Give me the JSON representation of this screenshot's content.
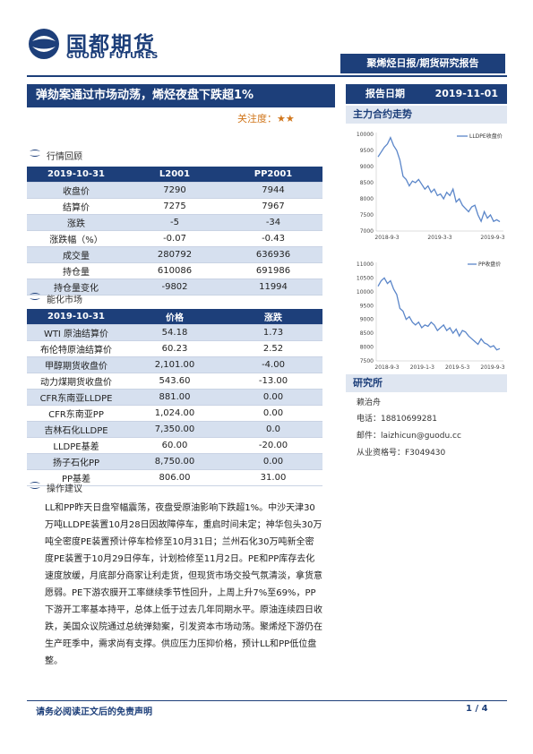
{
  "brand": {
    "name_cn": "国都期货",
    "name_en": "GUODU FUTURES",
    "colors": {
      "primary": "#1d3f7a",
      "row_shade": "#d6e0ef",
      "accent": "#d0751a",
      "line": "#5b86c9"
    }
  },
  "banner": "聚烯烃日报/期货研究报告",
  "title": "弹劾案通过市场动荡，烯烃夜盘下跌超1%",
  "report_date": {
    "label": "报告日期",
    "value": "2019-11-01"
  },
  "attention": "关注度：★★",
  "section_quotes": "行情回顾",
  "quote_table": {
    "headers": [
      "2019-10-31",
      "L2001",
      "PP2001"
    ],
    "rows": [
      [
        "收盘价",
        "7290",
        "7944"
      ],
      [
        "结算价",
        "7275",
        "7967"
      ],
      [
        "涨跌",
        "-5",
        "-34"
      ],
      [
        "涨跌幅（%）",
        "-0.07",
        "-0.43"
      ],
      [
        "成交量",
        "280792",
        "636936"
      ],
      [
        "持仓量",
        "610086",
        "691986"
      ],
      [
        "持仓量变化",
        "-9802",
        "11994"
      ]
    ]
  },
  "section_chem": "能化市场",
  "chem_table": {
    "headers": [
      "2019-10-31",
      "价格",
      "涨跌"
    ],
    "rows": [
      [
        "WTI 原油结算价",
        "54.18",
        "1.73"
      ],
      [
        "布伦特原油结算价",
        "60.23",
        "2.52"
      ],
      [
        "甲醇期货收盘价",
        "2,101.00",
        "-4.00"
      ],
      [
        "动力煤期货收盘价",
        "543.60",
        "-13.00"
      ],
      [
        "CFR东南亚LLDPE",
        "881.00",
        "0.00"
      ],
      [
        "CFR东南亚PP",
        "1,024.00",
        "0.00"
      ],
      [
        "吉林石化LLDPE",
        "7,350.00",
        "0.0"
      ],
      [
        "LLDPE基差",
        "60.00",
        "-20.00"
      ],
      [
        "扬子石化PP",
        "8,750.00",
        "0.00"
      ],
      [
        "PP基差",
        "806.00",
        "31.00"
      ]
    ]
  },
  "section_ops": "操作建议",
  "ops_text": "LL和PP昨天日盘窄幅震荡，夜盘受原油影响下跌超1%。中沙天津30万吨LLDPE装置10月28日因故障停车，重启时间未定；神华包头30万吨全密度PE装置预计停车检修至10月31日；兰州石化30万吨新全密度PE装置于10月29日停车，计划检修至11月2日。PE和PP库存去化速度放缓，月底部分商家让利走货，但现货市场交投气氛清淡，拿货意愿弱。PE下游农膜开工率继续季节性回升，上周上升7%至69%，PP下游开工率基本持平，总体上低于过去几年同期水平。原油连续四日收跌，美国众议院通过总统弹劾案，引发资本市场动荡。聚烯烃下游仍在生产旺季中，需求尚有支撑。供应压力压抑价格，预计LL和PP低位盘整。",
  "right_section_chart": "主力合约走势",
  "chart_data": [
    {
      "type": "line",
      "series": [
        {
          "name": "LLDPE收盘价"
        }
      ],
      "x_ticks": [
        "2018-9-3",
        "2019-3-3",
        "2019-9-3"
      ],
      "ylim": [
        7000,
        10000
      ],
      "y_ticks": [
        "10000",
        "9500",
        "9000",
        "8500",
        "8000",
        "7500",
        "7000"
      ],
      "values": [
        9300,
        9450,
        9600,
        9700,
        9900,
        9650,
        9500,
        9200,
        8700,
        8600,
        8400,
        8550,
        8500,
        8600,
        8450,
        8300,
        8400,
        8200,
        8300,
        8100,
        8150,
        8000,
        8200,
        8100,
        8300,
        7900,
        8000,
        7800,
        7700,
        7600,
        7750,
        7800,
        7500,
        7300,
        7600,
        7400,
        7500,
        7300,
        7350,
        7290
      ]
    },
    {
      "type": "line",
      "series": [
        {
          "name": "PP收盘价"
        }
      ],
      "x_ticks": [
        "2018-9-3",
        "2019-1-3",
        "2019-5-3",
        "2019-9-3"
      ],
      "ylim": [
        7500,
        11000
      ],
      "y_ticks": [
        "11000",
        "10500",
        "10000",
        "9500",
        "9000",
        "8500",
        "8000",
        "7500"
      ],
      "values": [
        10200,
        10400,
        10500,
        10300,
        10400,
        10100,
        9900,
        9400,
        9300,
        9000,
        9100,
        8900,
        8800,
        8900,
        8700,
        8800,
        8750,
        8900,
        8800,
        8600,
        8700,
        8800,
        8600,
        8700,
        8500,
        8650,
        8400,
        8600,
        8550,
        8400,
        8300,
        8200,
        8100,
        8300,
        8150,
        8100,
        8000,
        8050,
        7900,
        7944
      ]
    }
  ],
  "right_section_research": "研究所",
  "researcher": {
    "name": "赖治舟",
    "phone": "电话：18810699281",
    "email": "邮件：laizhicun@guodu.cc",
    "license": "从业资格号：F3049430"
  },
  "footer": {
    "disclaimer": "请务必阅读正文后的免责声明",
    "page": "1 / 4"
  }
}
